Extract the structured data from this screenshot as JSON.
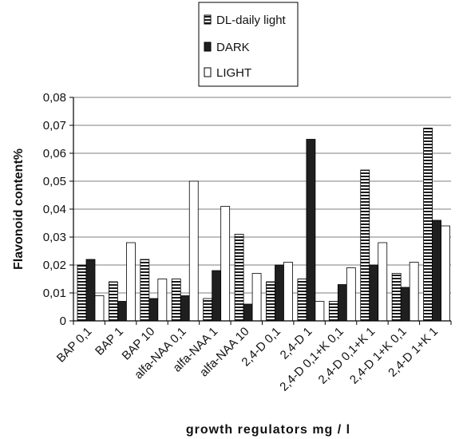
{
  "chart_data": {
    "type": "bar",
    "ylabel": "Flavonoid content%",
    "xlabel": "growth regulators mg / l",
    "ylim": [
      0,
      0.08
    ],
    "yticks": [
      "0",
      "0,01",
      "0,02",
      "0,03",
      "0,04",
      "0,05",
      "0,06",
      "0,07",
      "0,08"
    ],
    "grid": true,
    "legend_position": "top",
    "categories": [
      "BAP 0,1",
      "BAP 1",
      "BAP 10",
      "alfa-NAA 0,1",
      "alfa-NAA 1",
      "alfa-NAA 10",
      "2,4-D 0,1",
      "2,4-D 1",
      "2,4-D 0,1+K 0,1",
      "2,4-D 0,1+K 1",
      "2,4-D 1+K 0,1",
      "2,4-D 1+K 1"
    ],
    "series": [
      {
        "name": "DL-daily light",
        "pattern": "striped",
        "values": [
          0.02,
          0.014,
          0.022,
          0.015,
          0.008,
          0.031,
          0.014,
          0.015,
          0.007,
          0.054,
          0.017,
          0.069
        ]
      },
      {
        "name": "DARK",
        "pattern": "solid-dark",
        "values": [
          0.022,
          0.007,
          0.008,
          0.009,
          0.018,
          0.006,
          0.02,
          0.065,
          0.013,
          0.02,
          0.012,
          0.036
        ]
      },
      {
        "name": "LIGHT",
        "pattern": "white",
        "values": [
          0.009,
          0.028,
          0.015,
          0.05,
          0.041,
          0.017,
          0.021,
          0.007,
          0.019,
          0.028,
          0.021,
          0.034
        ]
      }
    ]
  },
  "colors": {
    "dark_bar": "#1f1f1f",
    "stripe_dark": "#1a1a1a",
    "stripe_light": "#ffffff",
    "light_bar": "#ffffff",
    "gridline": "#7f7f7f"
  }
}
